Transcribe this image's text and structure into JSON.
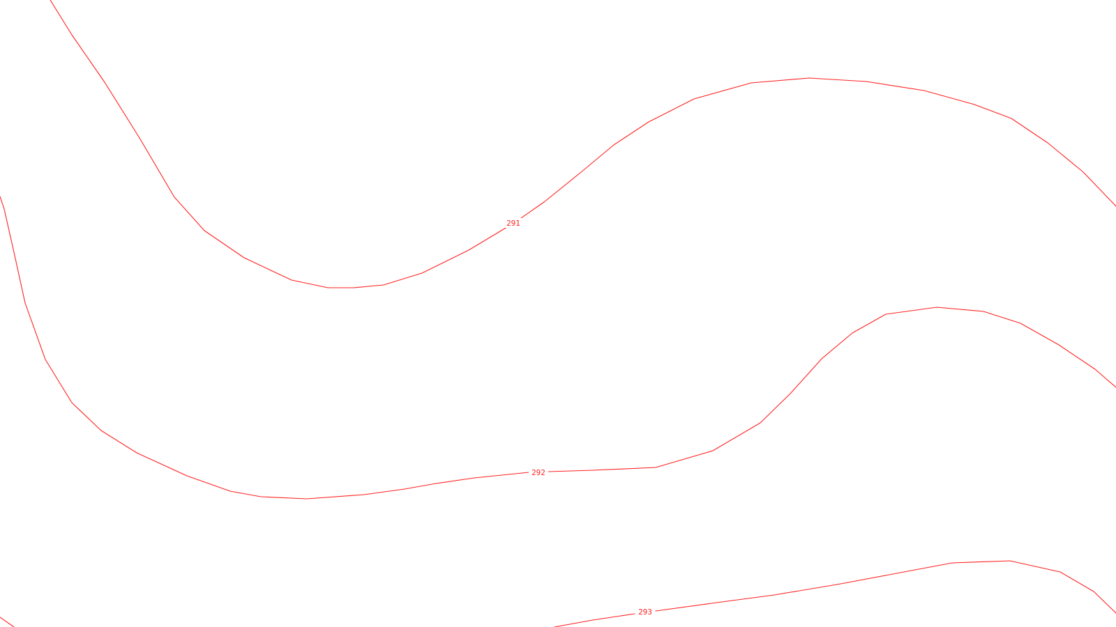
{
  "map": {
    "background_color": "#ffffff",
    "contour_color": "#ff2020",
    "contours": [
      {
        "id": "291",
        "label": "291"
      },
      {
        "id": "292",
        "label": "292"
      },
      {
        "id": "293",
        "label": "293"
      }
    ]
  }
}
